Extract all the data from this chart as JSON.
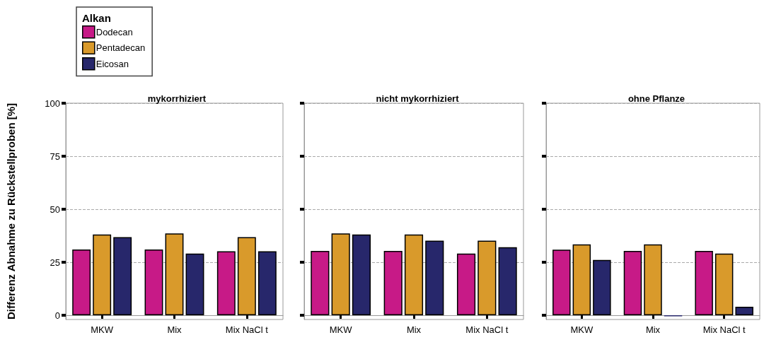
{
  "chart_data": [
    {
      "type": "bar",
      "title": "mykorrhiziert",
      "ylabel": "Differenz Abnahme zu Rückstellproben [%]",
      "legend_title": "Alkan",
      "legend": "top left",
      "categories": [
        "MKW",
        "Mix",
        "Mix NaCl t"
      ],
      "series": [
        {
          "name": "Dodecan",
          "color": "#c71a87",
          "values": [
            31,
            31,
            30.2
          ]
        },
        {
          "name": "Pentadecan",
          "color": "#d99a2b",
          "values": [
            38.1,
            38.6,
            36.8
          ]
        },
        {
          "name": "Eicosan",
          "color": "#27276b",
          "values": [
            36.8,
            29.1,
            30.2
          ]
        }
      ],
      "ylim": [
        -2,
        100
      ],
      "yticks": [
        0,
        25,
        50,
        75,
        100
      ],
      "grid": "y"
    },
    {
      "type": "bar",
      "title": "nicht mykorrhiziert",
      "categories": [
        "MKW",
        "Mix",
        "Mix NaCl t"
      ],
      "series": [
        {
          "color": "#c71a87",
          "values": [
            30.3,
            30.3,
            29.1
          ]
        },
        {
          "color": "#d99a2b",
          "values": [
            38.6,
            38.1,
            35.2
          ]
        },
        {
          "color": "#27276b",
          "values": [
            38.1,
            35.2,
            32.1
          ]
        }
      ],
      "ylim": [
        -2,
        100
      ],
      "yticks": [
        0,
        25,
        50,
        75,
        100
      ],
      "grid": "y",
      "tick_labels": "x"
    },
    {
      "type": "bar",
      "title": "ohne Pflanze",
      "categories": [
        "MKW",
        "Mix",
        "Mix NaCl t"
      ],
      "series": [
        {
          "color": "#c71a87",
          "values": [
            30.9,
            30.3,
            30.3
          ]
        },
        {
          "color": "#d99a2b",
          "values": [
            33.4,
            33.4,
            29.1
          ]
        },
        {
          "color": "#27276b",
          "values": [
            26.1,
            -0.5,
            4.0
          ]
        }
      ],
      "ylim": [
        -2,
        100
      ],
      "yticks": [
        0,
        25,
        50,
        75,
        100
      ],
      "grid": "y",
      "tick_labels": "x"
    }
  ]
}
